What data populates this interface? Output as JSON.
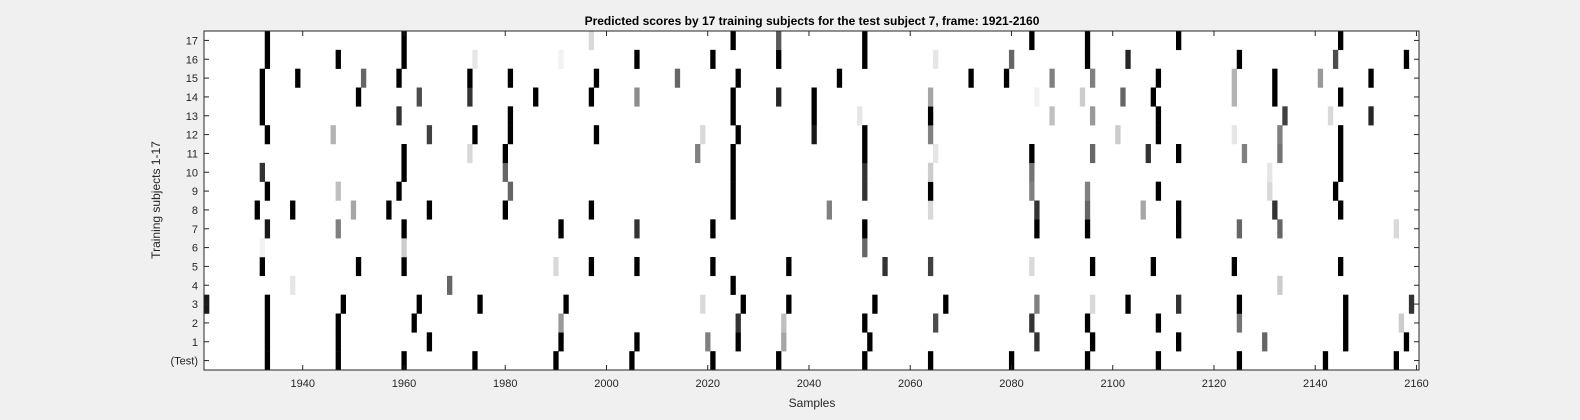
{
  "chart_data": {
    "type": "heatmap",
    "title": "Predicted scores by 17 training subjects for the test subject 7, frame: 1921-2160",
    "xlabel": "Samples",
    "ylabel": "Training subjects 1-17",
    "xlim": [
      1921,
      2160
    ],
    "x_ticks": [
      1940,
      1960,
      1980,
      2000,
      2020,
      2040,
      2060,
      2080,
      2100,
      2120,
      2140,
      2160
    ],
    "y_tick_labels": [
      "(Test)",
      "1",
      "2",
      "3",
      "4",
      "5",
      "6",
      "7",
      "8",
      "9",
      "10",
      "11",
      "12",
      "13",
      "14",
      "15",
      "16",
      "17"
    ],
    "colormap": "white (0) to black (1)",
    "rows": [
      {
        "label": "(Test)",
        "cells": [
          [
            1933,
            1
          ],
          [
            1947,
            1
          ],
          [
            1960,
            1
          ],
          [
            1974,
            1
          ],
          [
            1990,
            1
          ],
          [
            2005,
            1
          ],
          [
            2021,
            1
          ],
          [
            2034,
            1
          ],
          [
            2051,
            1
          ],
          [
            2064,
            1
          ],
          [
            2080,
            1
          ],
          [
            2095,
            1
          ],
          [
            2109,
            1
          ],
          [
            2125,
            1
          ],
          [
            2142,
            1
          ],
          [
            2156,
            1
          ]
        ]
      },
      {
        "label": "1",
        "cells": [
          [
            1933,
            1
          ],
          [
            1947,
            1
          ],
          [
            1965,
            1
          ],
          [
            1991,
            1
          ],
          [
            2006,
            1
          ],
          [
            2020,
            0.5
          ],
          [
            2026,
            1
          ],
          [
            2035,
            0.35
          ],
          [
            2052,
            1
          ],
          [
            2085,
            0.8
          ],
          [
            2096,
            1
          ],
          [
            2113,
            1
          ],
          [
            2130,
            0.6
          ],
          [
            2146,
            1
          ],
          [
            2158,
            1
          ]
        ]
      },
      {
        "label": "2",
        "cells": [
          [
            1933,
            1
          ],
          [
            1947,
            1
          ],
          [
            1962,
            1
          ],
          [
            1991,
            0.4
          ],
          [
            2026,
            0.8
          ],
          [
            2035,
            0.25
          ],
          [
            2051,
            1
          ],
          [
            2065,
            0.7
          ],
          [
            2084,
            0.8
          ],
          [
            2095,
            1
          ],
          [
            2109,
            1
          ],
          [
            2125,
            0.55
          ],
          [
            2146,
            1
          ],
          [
            2157,
            0.2
          ]
        ]
      },
      {
        "label": "3",
        "cells": [
          [
            1921,
            0.9
          ],
          [
            1933,
            1
          ],
          [
            1948,
            1
          ],
          [
            1963,
            1
          ],
          [
            1975,
            1
          ],
          [
            1992,
            1
          ],
          [
            2019,
            0.15
          ],
          [
            2027,
            1
          ],
          [
            2036,
            1
          ],
          [
            2053,
            1
          ],
          [
            2067,
            1
          ],
          [
            2085,
            0.5
          ],
          [
            2096,
            0.15
          ],
          [
            2103,
            1
          ],
          [
            2113,
            0.8
          ],
          [
            2125,
            1
          ],
          [
            2146,
            1
          ],
          [
            2159,
            0.8
          ]
        ]
      },
      {
        "label": "4",
        "cells": [
          [
            1938,
            0.1
          ],
          [
            1969,
            0.6
          ],
          [
            2025,
            1
          ],
          [
            2133,
            0.2
          ]
        ]
      },
      {
        "label": "5",
        "cells": [
          [
            1932,
            1
          ],
          [
            1951,
            1
          ],
          [
            1960,
            1
          ],
          [
            1990,
            0.15
          ],
          [
            1997,
            1
          ],
          [
            2006,
            1
          ],
          [
            2021,
            1
          ],
          [
            2036,
            1
          ],
          [
            2055,
            0.8
          ],
          [
            2064,
            0.75
          ],
          [
            2084,
            0.15
          ],
          [
            2096,
            1
          ],
          [
            2108,
            1
          ],
          [
            2124,
            1
          ],
          [
            2145,
            1
          ]
        ]
      },
      {
        "label": "6",
        "cells": [
          [
            1932,
            0.05
          ],
          [
            1960,
            0.2
          ],
          [
            2051,
            0.6
          ]
        ]
      },
      {
        "label": "7",
        "cells": [
          [
            1933,
            0.9
          ],
          [
            1947,
            0.5
          ],
          [
            1960,
            1
          ],
          [
            1991,
            1
          ],
          [
            2006,
            0.8
          ],
          [
            2021,
            1
          ],
          [
            2051,
            1
          ],
          [
            2085,
            1
          ],
          [
            2095,
            1
          ],
          [
            2113,
            1
          ],
          [
            2125,
            0.6
          ],
          [
            2133,
            0.6
          ],
          [
            2156,
            0.15
          ]
        ]
      },
      {
        "label": "8",
        "cells": [
          [
            1931,
            1
          ],
          [
            1938,
            1
          ],
          [
            1950,
            0.35
          ],
          [
            1957,
            1
          ],
          [
            1965,
            1
          ],
          [
            1980,
            1
          ],
          [
            1997,
            1
          ],
          [
            2025,
            1
          ],
          [
            2044,
            0.5
          ],
          [
            2064,
            0.15
          ],
          [
            2085,
            0.8
          ],
          [
            2095,
            0.6
          ],
          [
            2106,
            0.35
          ],
          [
            2113,
            1
          ],
          [
            2132,
            0.8
          ],
          [
            2145,
            1
          ]
        ]
      },
      {
        "label": "9",
        "cells": [
          [
            1933,
            1
          ],
          [
            1947,
            0.25
          ],
          [
            1959,
            1
          ],
          [
            1981,
            0.6
          ],
          [
            2025,
            1
          ],
          [
            2051,
            0.8
          ],
          [
            2064,
            1
          ],
          [
            2084,
            0.5
          ],
          [
            2095,
            0.5
          ],
          [
            2109,
            1
          ],
          [
            2131,
            0.15
          ],
          [
            2144,
            1
          ]
        ]
      },
      {
        "label": "10",
        "cells": [
          [
            1932,
            0.8
          ],
          [
            1960,
            1
          ],
          [
            1980,
            0.6
          ],
          [
            2025,
            1
          ],
          [
            2051,
            0.8
          ],
          [
            2064,
            0.2
          ],
          [
            2084,
            0.55
          ],
          [
            2131,
            0.1
          ],
          [
            2145,
            1
          ]
        ]
      },
      {
        "label": "11",
        "cells": [
          [
            1960,
            1
          ],
          [
            1973,
            0.15
          ],
          [
            1980,
            1
          ],
          [
            2018,
            0.5
          ],
          [
            2025,
            1
          ],
          [
            2051,
            1
          ],
          [
            2065,
            0.1
          ],
          [
            2084,
            1
          ],
          [
            2096,
            0.6
          ],
          [
            2107,
            0.8
          ],
          [
            2113,
            1
          ],
          [
            2126,
            0.5
          ],
          [
            2133,
            0.55
          ],
          [
            2145,
            1
          ]
        ]
      },
      {
        "label": "12",
        "cells": [
          [
            1933,
            1
          ],
          [
            1946,
            0.3
          ],
          [
            1965,
            0.75
          ],
          [
            1974,
            1
          ],
          [
            1981,
            1
          ],
          [
            1998,
            1
          ],
          [
            2019,
            0.15
          ],
          [
            2026,
            1
          ],
          [
            2041,
            0.9
          ],
          [
            2051,
            1
          ],
          [
            2064,
            0.5
          ],
          [
            2101,
            0.2
          ],
          [
            2109,
            1
          ],
          [
            2124,
            0.1
          ],
          [
            2133,
            0.5
          ],
          [
            2145,
            1
          ]
        ]
      },
      {
        "label": "13",
        "cells": [
          [
            1932,
            1
          ],
          [
            1959,
            0.8
          ],
          [
            1981,
            1
          ],
          [
            2025,
            1
          ],
          [
            2041,
            1
          ],
          [
            2050,
            0.1
          ],
          [
            2064,
            1
          ],
          [
            2088,
            0.25
          ],
          [
            2096,
            0.4
          ],
          [
            2109,
            1
          ],
          [
            2134,
            0.75
          ],
          [
            2143,
            0.15
          ],
          [
            2151,
            0.85
          ]
        ]
      },
      {
        "label": "14",
        "cells": [
          [
            1932,
            1
          ],
          [
            1951,
            1
          ],
          [
            1963,
            0.7
          ],
          [
            1973,
            0.8
          ],
          [
            1986,
            1
          ],
          [
            1997,
            1
          ],
          [
            2006,
            0.45
          ],
          [
            2025,
            1
          ],
          [
            2034,
            0.85
          ],
          [
            2041,
            1
          ],
          [
            2064,
            0.35
          ],
          [
            2085,
            0.05
          ],
          [
            2094,
            0.2
          ],
          [
            2102,
            0.6
          ],
          [
            2108,
            1
          ],
          [
            2124,
            0.3
          ],
          [
            2132,
            1
          ],
          [
            2145,
            1
          ]
        ]
      },
      {
        "label": "15",
        "cells": [
          [
            1932,
            1
          ],
          [
            1939,
            1
          ],
          [
            1952,
            0.6
          ],
          [
            1959,
            1
          ],
          [
            1973,
            1
          ],
          [
            1981,
            1
          ],
          [
            1998,
            1
          ],
          [
            2014,
            0.6
          ],
          [
            2026,
            1
          ],
          [
            2046,
            1
          ],
          [
            2072,
            1
          ],
          [
            2079,
            1
          ],
          [
            2088,
            0.5
          ],
          [
            2096,
            0.5
          ],
          [
            2109,
            1
          ],
          [
            2124,
            0.3
          ],
          [
            2132,
            1
          ],
          [
            2141,
            0.4
          ],
          [
            2151,
            1
          ]
        ]
      },
      {
        "label": "16",
        "cells": [
          [
            1933,
            1
          ],
          [
            1947,
            1
          ],
          [
            1960,
            1
          ],
          [
            1974,
            0.1
          ],
          [
            1991,
            0.05
          ],
          [
            2006,
            1
          ],
          [
            2021,
            1
          ],
          [
            2034,
            1
          ],
          [
            2051,
            1
          ],
          [
            2065,
            0.1
          ],
          [
            2080,
            0.6
          ],
          [
            2095,
            1
          ],
          [
            2103,
            0.85
          ],
          [
            2125,
            1
          ],
          [
            2144,
            0.7
          ],
          [
            2158,
            1
          ]
        ]
      },
      {
        "label": "17",
        "cells": [
          [
            1933,
            1
          ],
          [
            1960,
            1
          ],
          [
            1997,
            0.15
          ],
          [
            2025,
            1
          ],
          [
            2034,
            0.65
          ],
          [
            2051,
            1
          ],
          [
            2084,
            1
          ],
          [
            2095,
            1
          ],
          [
            2113,
            1
          ],
          [
            2145,
            1
          ]
        ]
      }
    ]
  }
}
